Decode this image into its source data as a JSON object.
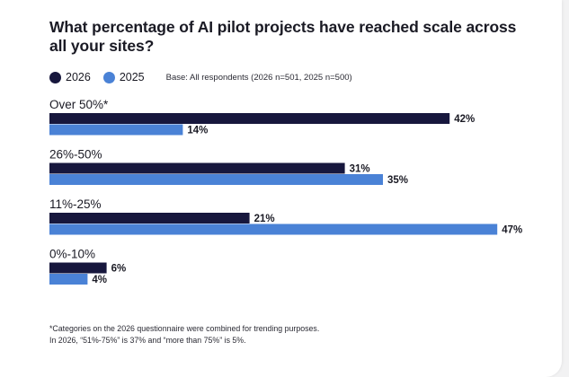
{
  "title": "What percentage of AI pilot projects have reached scale across all your sites?",
  "base_note": "Base: All respondents (2026 n=501, 2025 n=500)",
  "footnote_line1": "*Categories on the 2026 questionnaire were combined for trending purposes.",
  "footnote_line2": "In 2026, “51%-75%” is 37% and “more than 75%” is 5%.",
  "chart_data": {
    "type": "bar",
    "orientation": "horizontal",
    "title": "What percentage of AI pilot projects have reached scale across all your sites?",
    "categories": [
      "Over 50%*",
      "26%-50%",
      "11%-25%",
      "0%-10%"
    ],
    "series": [
      {
        "name": "2026",
        "color": "#17173d",
        "values": [
          42,
          31,
          21,
          6
        ]
      },
      {
        "name": "2025",
        "color": "#4a82d6",
        "values": [
          14,
          35,
          47,
          4
        ]
      }
    ],
    "value_suffix": "%",
    "legend_placement": "top-left",
    "grid": false,
    "xlim": [
      0,
      47
    ]
  }
}
